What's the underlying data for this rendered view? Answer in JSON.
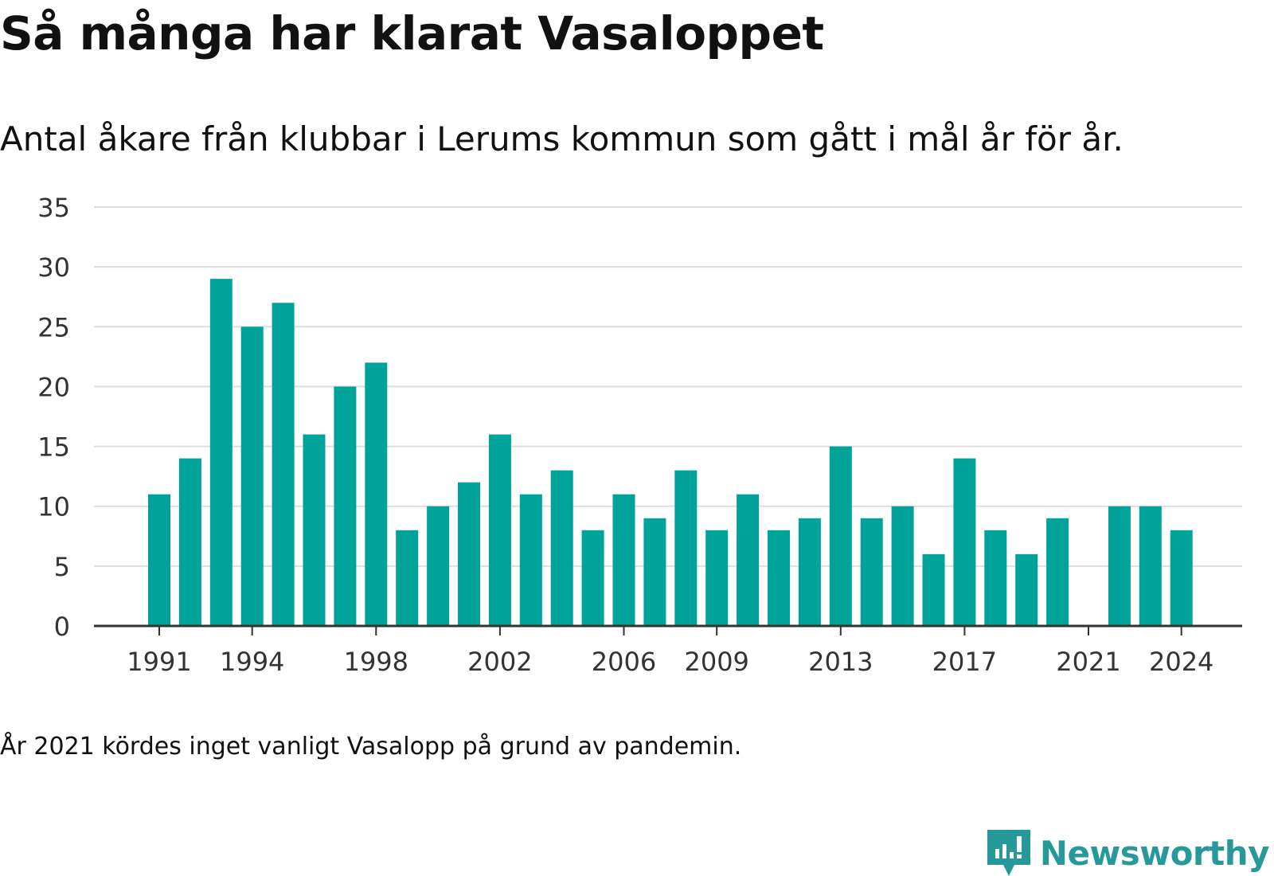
{
  "title": "Så många har klarat Vasaloppet",
  "subtitle": "Antal åkare från klubbar i Lerums kommun som gått i mål år för år.",
  "note": "År 2021 kördes inget vanligt Vasalopp på grund av pandemin.",
  "brand": {
    "name": "Newsworthy",
    "icon": "newsworthy-logo-icon",
    "color": "#27999a"
  },
  "colors": {
    "bar": "#00a39a",
    "grid": "#dddddd",
    "axis": "#333333",
    "text": "#333333"
  },
  "chart_data": {
    "type": "bar",
    "x": [
      1991,
      1992,
      1993,
      1994,
      1995,
      1996,
      1997,
      1998,
      1999,
      2000,
      2001,
      2002,
      2003,
      2004,
      2005,
      2006,
      2007,
      2008,
      2009,
      2010,
      2011,
      2012,
      2013,
      2014,
      2015,
      2016,
      2017,
      2018,
      2019,
      2020,
      2021,
      2022,
      2023,
      2024
    ],
    "values": [
      11,
      14,
      29,
      25,
      27,
      16,
      20,
      22,
      8,
      10,
      12,
      16,
      11,
      13,
      8,
      11,
      9,
      13,
      8,
      11,
      8,
      9,
      15,
      9,
      10,
      6,
      14,
      8,
      6,
      9,
      null,
      10,
      10,
      8
    ],
    "x_tick_labels": [
      "1991",
      "1994",
      "1998",
      "2002",
      "2006",
      "2009",
      "2013",
      "2017",
      "2021",
      "2024"
    ],
    "y_ticks": [
      "0",
      "5",
      "10",
      "15",
      "20",
      "25",
      "30",
      "35"
    ],
    "ylim": [
      0,
      35
    ],
    "grid": true,
    "legend": "none",
    "xlabel": "",
    "ylabel": ""
  }
}
